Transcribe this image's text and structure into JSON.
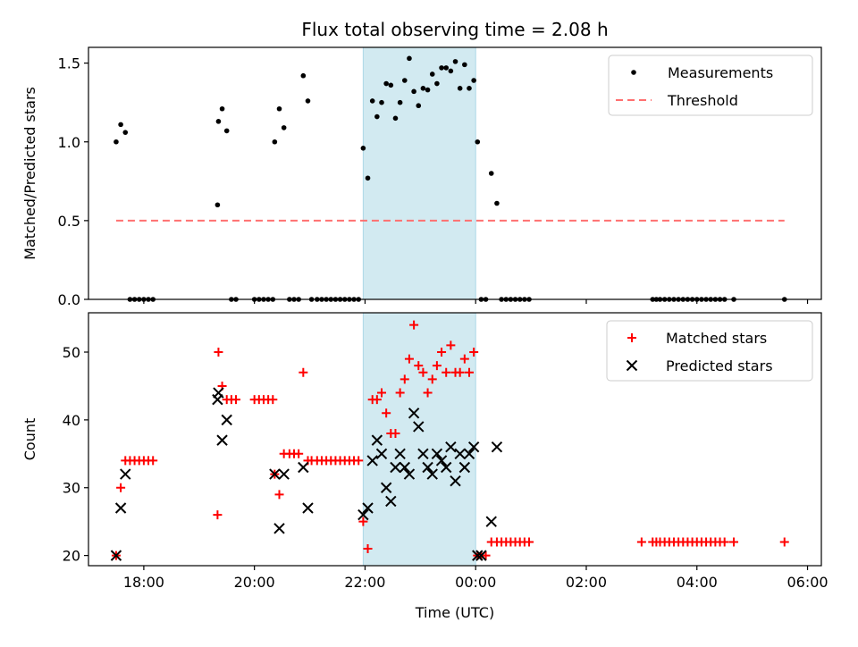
{
  "title": "Flux total observing time = 2.08 h",
  "colors": {
    "measurements": "#000000",
    "threshold": "#ff7070",
    "matched": "#ff0000",
    "predicted": "#000000",
    "highlight": "#add8e6"
  },
  "chart_data": [
    {
      "type": "scatter",
      "ylabel": "Matched/Predicted stars",
      "xlabel": "",
      "xlim": [
        "17:00",
        "06:15"
      ],
      "ylim": [
        0,
        1.6
      ],
      "yticks": [
        "0.0",
        "0.5",
        "1.0",
        "1.5"
      ],
      "legend": "top-right",
      "highlight_span": [
        "21:58",
        "00:00"
      ],
      "series": [
        {
          "name": "Measurements",
          "marker": "dot",
          "points": [
            [
              "17:30",
              1.0
            ],
            [
              "17:35",
              1.11
            ],
            [
              "17:40",
              1.06
            ],
            [
              "17:45",
              0
            ],
            [
              "17:50",
              0
            ],
            [
              "17:55",
              0
            ],
            [
              "18:00",
              0
            ],
            [
              "18:05",
              0
            ],
            [
              "18:10",
              0
            ],
            [
              "19:20",
              0.6
            ],
            [
              "19:21",
              1.13
            ],
            [
              "19:25",
              1.21
            ],
            [
              "19:30",
              1.07
            ],
            [
              "19:35",
              0
            ],
            [
              "19:40",
              0
            ],
            [
              "20:00",
              0
            ],
            [
              "20:05",
              0
            ],
            [
              "20:10",
              0
            ],
            [
              "20:15",
              0
            ],
            [
              "20:20",
              0
            ],
            [
              "20:22",
              1.0
            ],
            [
              "20:27",
              1.21
            ],
            [
              "20:32",
              1.09
            ],
            [
              "20:38",
              0
            ],
            [
              "20:43",
              0
            ],
            [
              "20:48",
              0
            ],
            [
              "20:53",
              1.42
            ],
            [
              "20:58",
              1.26
            ],
            [
              "21:02",
              0
            ],
            [
              "21:08",
              0
            ],
            [
              "21:13",
              0
            ],
            [
              "21:18",
              0
            ],
            [
              "21:23",
              0
            ],
            [
              "21:28",
              0
            ],
            [
              "21:33",
              0
            ],
            [
              "21:38",
              0
            ],
            [
              "21:43",
              0
            ],
            [
              "21:48",
              0
            ],
            [
              "21:53",
              0
            ],
            [
              "21:58",
              0.96
            ],
            [
              "22:03",
              0.77
            ],
            [
              "22:08",
              1.26
            ],
            [
              "22:13",
              1.16
            ],
            [
              "22:18",
              1.25
            ],
            [
              "22:23",
              1.37
            ],
            [
              "22:28",
              1.36
            ],
            [
              "22:33",
              1.15
            ],
            [
              "22:38",
              1.25
            ],
            [
              "22:43",
              1.39
            ],
            [
              "22:48",
              1.53
            ],
            [
              "22:53",
              1.32
            ],
            [
              "22:58",
              1.23
            ],
            [
              "23:03",
              1.34
            ],
            [
              "23:08",
              1.33
            ],
            [
              "23:13",
              1.43
            ],
            [
              "23:18",
              1.37
            ],
            [
              "23:23",
              1.47
            ],
            [
              "23:28",
              1.47
            ],
            [
              "23:33",
              1.45
            ],
            [
              "23:38",
              1.51
            ],
            [
              "23:43",
              1.34
            ],
            [
              "23:48",
              1.49
            ],
            [
              "23:53",
              1.34
            ],
            [
              "23:58",
              1.39
            ],
            [
              "00:02",
              1.0
            ],
            [
              "00:06",
              0
            ],
            [
              "00:11",
              0
            ],
            [
              "00:17",
              0.8
            ],
            [
              "00:23",
              0.61
            ],
            [
              "00:28",
              0
            ],
            [
              "00:33",
              0
            ],
            [
              "00:38",
              0
            ],
            [
              "00:43",
              0
            ],
            [
              "00:48",
              0
            ],
            [
              "00:53",
              0
            ],
            [
              "00:58",
              0
            ],
            [
              "03:12",
              0
            ],
            [
              "03:16",
              0
            ],
            [
              "03:20",
              0
            ],
            [
              "03:25",
              0
            ],
            [
              "03:30",
              0
            ],
            [
              "03:35",
              0
            ],
            [
              "03:40",
              0
            ],
            [
              "03:45",
              0
            ],
            [
              "03:50",
              0
            ],
            [
              "03:55",
              0
            ],
            [
              "04:00",
              0
            ],
            [
              "04:05",
              0
            ],
            [
              "04:10",
              0
            ],
            [
              "04:15",
              0
            ],
            [
              "04:20",
              0
            ],
            [
              "04:25",
              0
            ],
            [
              "04:30",
              0
            ],
            [
              "04:40",
              0
            ],
            [
              "05:35",
              0
            ]
          ]
        },
        {
          "name": "Threshold",
          "marker": "dashed-line",
          "points": [
            [
              "17:30",
              0.5
            ],
            [
              "05:35",
              0.5
            ]
          ]
        }
      ]
    },
    {
      "type": "scatter",
      "ylabel": "Count",
      "xlabel": "Time (UTC)",
      "xlim": [
        "17:00",
        "06:15"
      ],
      "ylim": [
        18.5,
        55.8
      ],
      "yticks": [
        "20",
        "30",
        "40",
        "50"
      ],
      "xticks": [
        "18:00",
        "20:00",
        "22:00",
        "00:00",
        "02:00",
        "04:00",
        "06:00"
      ],
      "legend": "top-right",
      "highlight_span": [
        "21:58",
        "00:00"
      ],
      "series": [
        {
          "name": "Matched stars",
          "marker": "plus",
          "points": [
            [
              "17:30",
              20
            ],
            [
              "17:35",
              30
            ],
            [
              "17:40",
              34
            ],
            [
              "17:45",
              34
            ],
            [
              "17:50",
              34
            ],
            [
              "17:55",
              34
            ],
            [
              "18:00",
              34
            ],
            [
              "18:05",
              34
            ],
            [
              "18:10",
              34
            ],
            [
              "19:20",
              26
            ],
            [
              "19:21",
              50
            ],
            [
              "19:25",
              45
            ],
            [
              "19:30",
              43
            ],
            [
              "19:35",
              43
            ],
            [
              "19:40",
              43
            ],
            [
              "20:00",
              43
            ],
            [
              "20:05",
              43
            ],
            [
              "20:10",
              43
            ],
            [
              "20:15",
              43
            ],
            [
              "20:20",
              43
            ],
            [
              "20:22",
              32
            ],
            [
              "20:27",
              29
            ],
            [
              "20:32",
              35
            ],
            [
              "20:38",
              35
            ],
            [
              "20:43",
              35
            ],
            [
              "20:48",
              35
            ],
            [
              "20:53",
              47
            ],
            [
              "20:58",
              34
            ],
            [
              "21:02",
              34
            ],
            [
              "21:08",
              34
            ],
            [
              "21:13",
              34
            ],
            [
              "21:18",
              34
            ],
            [
              "21:23",
              34
            ],
            [
              "21:28",
              34
            ],
            [
              "21:33",
              34
            ],
            [
              "21:38",
              34
            ],
            [
              "21:43",
              34
            ],
            [
              "21:48",
              34
            ],
            [
              "21:53",
              34
            ],
            [
              "21:58",
              25
            ],
            [
              "22:03",
              21
            ],
            [
              "22:08",
              43
            ],
            [
              "22:13",
              43
            ],
            [
              "22:18",
              44
            ],
            [
              "22:23",
              41
            ],
            [
              "22:28",
              38
            ],
            [
              "22:33",
              38
            ],
            [
              "22:38",
              44
            ],
            [
              "22:43",
              46
            ],
            [
              "22:48",
              49
            ],
            [
              "22:53",
              54
            ],
            [
              "22:58",
              48
            ],
            [
              "23:03",
              47
            ],
            [
              "23:08",
              44
            ],
            [
              "23:13",
              46
            ],
            [
              "23:18",
              48
            ],
            [
              "23:23",
              50
            ],
            [
              "23:28",
              47
            ],
            [
              "23:33",
              51
            ],
            [
              "23:38",
              47
            ],
            [
              "23:43",
              47
            ],
            [
              "23:48",
              49
            ],
            [
              "23:53",
              47
            ],
            [
              "23:58",
              50
            ],
            [
              "00:02",
              20
            ],
            [
              "00:06",
              20
            ],
            [
              "00:11",
              20
            ],
            [
              "00:17",
              22
            ],
            [
              "00:23",
              22
            ],
            [
              "00:28",
              22
            ],
            [
              "00:33",
              22
            ],
            [
              "00:38",
              22
            ],
            [
              "00:43",
              22
            ],
            [
              "00:48",
              22
            ],
            [
              "00:53",
              22
            ],
            [
              "00:58",
              22
            ],
            [
              "03:00",
              22
            ],
            [
              "03:12",
              22
            ],
            [
              "03:16",
              22
            ],
            [
              "03:20",
              22
            ],
            [
              "03:25",
              22
            ],
            [
              "03:30",
              22
            ],
            [
              "03:35",
              22
            ],
            [
              "03:40",
              22
            ],
            [
              "03:45",
              22
            ],
            [
              "03:50",
              22
            ],
            [
              "03:55",
              22
            ],
            [
              "04:00",
              22
            ],
            [
              "04:05",
              22
            ],
            [
              "04:10",
              22
            ],
            [
              "04:15",
              22
            ],
            [
              "04:20",
              22
            ],
            [
              "04:25",
              22
            ],
            [
              "04:30",
              22
            ],
            [
              "04:40",
              22
            ],
            [
              "05:35",
              22
            ]
          ]
        },
        {
          "name": "Predicted stars",
          "marker": "x",
          "points": [
            [
              "17:30",
              20
            ],
            [
              "17:35",
              27
            ],
            [
              "17:40",
              32
            ],
            [
              "19:20",
              43
            ],
            [
              "19:21",
              44
            ],
            [
              "19:25",
              37
            ],
            [
              "19:30",
              40
            ],
            [
              "20:22",
              32
            ],
            [
              "20:27",
              24
            ],
            [
              "20:32",
              32
            ],
            [
              "20:53",
              33
            ],
            [
              "20:58",
              27
            ],
            [
              "21:58",
              26
            ],
            [
              "22:03",
              27
            ],
            [
              "22:08",
              34
            ],
            [
              "22:13",
              37
            ],
            [
              "22:18",
              35
            ],
            [
              "22:23",
              30
            ],
            [
              "22:28",
              28
            ],
            [
              "22:33",
              33
            ],
            [
              "22:38",
              35
            ],
            [
              "22:43",
              33
            ],
            [
              "22:48",
              32
            ],
            [
              "22:53",
              41
            ],
            [
              "22:58",
              39
            ],
            [
              "23:03",
              35
            ],
            [
              "23:08",
              33
            ],
            [
              "23:13",
              32
            ],
            [
              "23:18",
              35
            ],
            [
              "23:23",
              34
            ],
            [
              "23:28",
              33
            ],
            [
              "23:33",
              36
            ],
            [
              "23:38",
              31
            ],
            [
              "23:43",
              35
            ],
            [
              "23:48",
              33
            ],
            [
              "23:53",
              35
            ],
            [
              "23:58",
              36
            ],
            [
              "00:02",
              20
            ],
            [
              "00:06",
              20
            ],
            [
              "00:17",
              25
            ],
            [
              "00:23",
              36
            ]
          ]
        }
      ]
    }
  ]
}
